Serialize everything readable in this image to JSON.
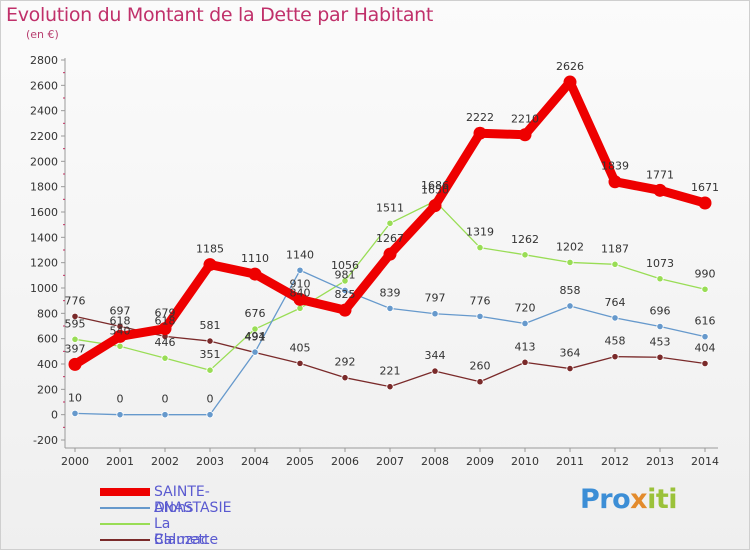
{
  "header": {
    "title": "Evolution du Montant de la Dette par Habitant",
    "subtitle": "(en €)"
  },
  "logo": {
    "text": "Proxiti"
  },
  "chart_data": {
    "type": "line",
    "title": "Evolution du Montant de la Dette par Habitant",
    "subtitle": "(en €)",
    "xlabel": "",
    "ylabel": "",
    "x": [
      "2000",
      "2001",
      "2002",
      "2003",
      "2004",
      "2005",
      "2006",
      "2007",
      "2008",
      "2009",
      "2010",
      "2011",
      "2012",
      "2013",
      "2014"
    ],
    "ylim": [
      -200,
      2800
    ],
    "yticks": [
      -200,
      0,
      200,
      400,
      600,
      800,
      1000,
      1200,
      1400,
      1600,
      1800,
      2000,
      2200,
      2400,
      2600,
      2800
    ],
    "grid": false,
    "legend_position": "bottom-left",
    "series": [
      {
        "name": "SAINTE-ANASTASIE",
        "color": "#ee0000",
        "values": [
          397,
          618,
          679,
          1185,
          1110,
          910,
          825,
          1267,
          1650,
          2222,
          2210,
          2626,
          1839,
          1771,
          1671
        ]
      },
      {
        "name": "Dions",
        "color": "#6699cc",
        "values": [
          10,
          0,
          0,
          0,
          494,
          1140,
          981,
          839,
          797,
          776,
          720,
          858,
          764,
          696,
          616
        ]
      },
      {
        "name": "La Calmette",
        "color": "#99dd55",
        "values": [
          595,
          540,
          446,
          351,
          676,
          840,
          1056,
          1511,
          1686,
          1319,
          1262,
          1202,
          1187,
          1073,
          990
        ]
      },
      {
        "name": "Blauzac",
        "color": "#7a2a2a",
        "values": [
          776,
          697,
          618,
          581,
          491,
          405,
          292,
          221,
          344,
          260,
          413,
          364,
          458,
          453,
          404
        ]
      }
    ]
  }
}
